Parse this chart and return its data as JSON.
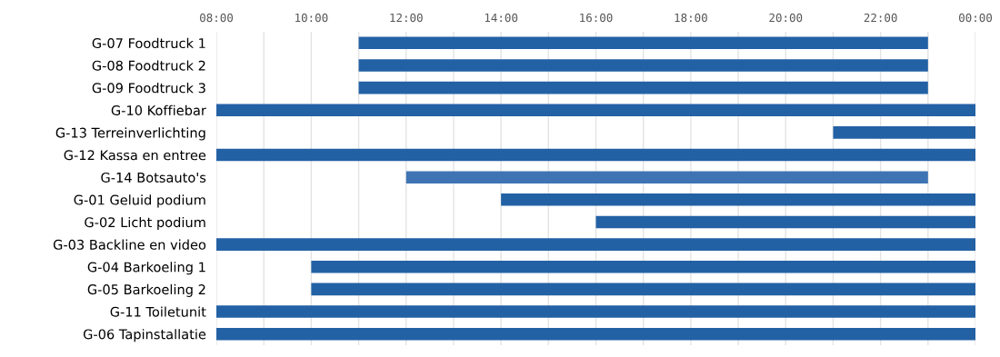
{
  "chart_data": {
    "type": "bar",
    "orientation": "horizontal",
    "categories": [
      "G-07 Foodtruck 1",
      "G-08 Foodtruck 2",
      "G-09 Foodtruck 3",
      "G-10 Koffiebar",
      "G-13 Terreinverlichting",
      "G-12 Kassa en entree",
      "G-14 Botsauto's",
      "G-01 Geluid podium",
      "G-02 Licht podium",
      "G-03 Backline en video",
      "G-04 Barkoeling 1",
      "G-05 Barkoeling 2",
      "G-11 Toiletunit",
      "G-06 Tapinstallatie"
    ],
    "base": [
      11,
      11,
      11,
      8,
      21,
      8,
      12,
      14,
      16,
      8,
      10,
      10,
      8,
      8
    ],
    "values": [
      12,
      12,
      12,
      16,
      3,
      16,
      11,
      10,
      8,
      16,
      14,
      14,
      16,
      16
    ],
    "colors": [
      "#2361a5",
      "#2361a5",
      "#2361a5",
      "#2361a5",
      "#2361a5",
      "#2361a5",
      "#3f74b4",
      "#2361a5",
      "#2361a5",
      "#2361a5",
      "#2361a5",
      "#2361a5",
      "#2361a5",
      "#2361a5"
    ],
    "xlim": [
      8,
      24
    ],
    "xticks": [
      {
        "value": 8,
        "label": "08:00"
      },
      {
        "value": 9,
        "label": null
      },
      {
        "value": 10,
        "label": "10:00"
      },
      {
        "value": 11,
        "label": null
      },
      {
        "value": 12,
        "label": "12:00"
      },
      {
        "value": 13,
        "label": null
      },
      {
        "value": 14,
        "label": "14:00"
      },
      {
        "value": 15,
        "label": null
      },
      {
        "value": 16,
        "label": "16:00"
      },
      {
        "value": 17,
        "label": null
      },
      {
        "value": 18,
        "label": "18:00"
      },
      {
        "value": 19,
        "label": null
      },
      {
        "value": 20,
        "label": "20:00"
      },
      {
        "value": 21,
        "label": null
      },
      {
        "value": 22,
        "label": "22:00"
      },
      {
        "value": 23,
        "label": null
      },
      {
        "value": 24,
        "label": "00:00"
      }
    ],
    "grid": "x"
  }
}
